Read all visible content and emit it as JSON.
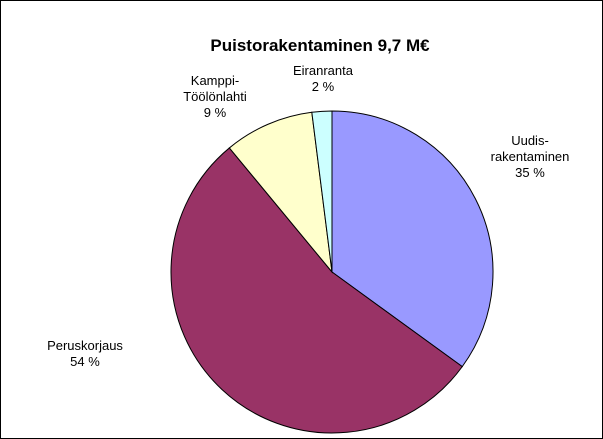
{
  "chart_data": {
    "type": "pie",
    "title": "Puistorakentaminen  9,7 M€",
    "categories": [
      [
        "Uudis-",
        "rakentaminen"
      ],
      [
        "Peruskorjaus"
      ],
      [
        "Kamppi-",
        "Töölönlahti"
      ],
      [
        "Eiranranta"
      ]
    ],
    "values": [
      35,
      54,
      9,
      2
    ],
    "value_labels": [
      "35 %",
      "54 %",
      "9 %",
      "2 %"
    ],
    "colors": [
      "#9999ff",
      "#993366",
      "#ffffcc",
      "#ccffff"
    ]
  }
}
